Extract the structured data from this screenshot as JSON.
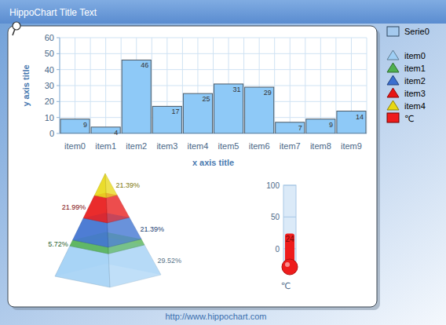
{
  "page": {
    "title": "HippoChart Title Text",
    "footer": "http://www.hippochart.com"
  },
  "chart_data": [
    {
      "type": "bar",
      "x_label": "x axis title",
      "y_label": "y axis title",
      "categories": [
        "item0",
        "item1",
        "item2",
        "item3",
        "item4",
        "item5",
        "item6",
        "item7",
        "item8",
        "item9"
      ],
      "series": [
        {
          "name": "Serie0",
          "color": "#8ec9f7",
          "values": [
            9,
            4,
            46,
            17,
            25,
            31,
            29,
            7,
            9,
            14
          ]
        }
      ],
      "ylim": [
        0,
        60
      ],
      "yticks": [
        0,
        10,
        20,
        30,
        40,
        50,
        60
      ],
      "grid": true,
      "data_labels": true,
      "legend": "right"
    },
    {
      "type": "pyramid",
      "categories": [
        "item0",
        "item1",
        "item2",
        "item3",
        "item4"
      ],
      "values": [
        29.52,
        5.72,
        21.39,
        21.99,
        21.39
      ],
      "value_labels": [
        "29.52%",
        "5.72%",
        "21.39%",
        "21.99%",
        "21.39%"
      ],
      "colors": [
        "#9fcff5",
        "#4fb04f",
        "#3a6fd0",
        "#e81414",
        "#e8d814"
      ],
      "data_labels": true,
      "legend": "right"
    },
    {
      "type": "thermometer",
      "categories": [
        "℃"
      ],
      "values": [
        24
      ],
      "ylim": [
        -20,
        100
      ],
      "yticks": [
        0,
        50,
        100
      ],
      "color": "#ee1c1c",
      "data_labels": true,
      "legend": "right"
    }
  ]
}
